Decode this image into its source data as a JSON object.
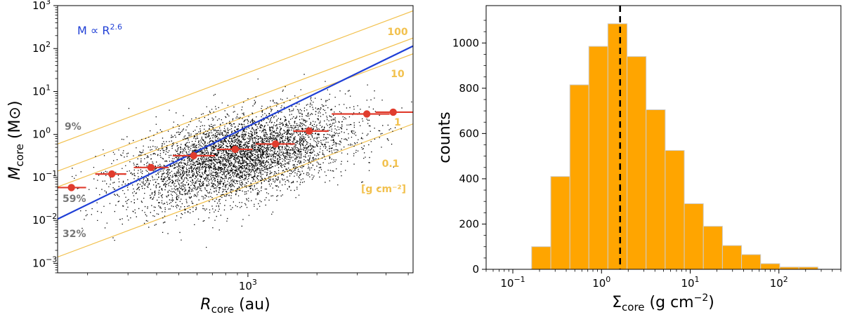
{
  "chart_data": [
    {
      "type": "scatter",
      "xscale": "log",
      "yscale": "log",
      "xlim": [
        148,
        5250
      ],
      "ylim": [
        0.0006,
        1000
      ],
      "xlabel": {
        "base": "R",
        "sub": "core",
        "rest": " (au)"
      },
      "ylabel": {
        "base": "M",
        "sub": "core",
        "rest": " (M⊙)"
      },
      "x_ticks": [
        {
          "value": 1000,
          "label": "10",
          "exp": "3"
        }
      ],
      "y_ticks": [
        {
          "value": 0.001,
          "label": "10",
          "exp": "−3"
        },
        {
          "value": 0.01,
          "label": "10",
          "exp": "−2"
        },
        {
          "value": 0.1,
          "label": "10",
          "exp": "−1"
        },
        {
          "value": 1,
          "label": "10",
          "exp": "0"
        },
        {
          "value": 10,
          "label": "10",
          "exp": "1"
        },
        {
          "value": 100,
          "label": "10",
          "exp": "2"
        },
        {
          "value": 1000,
          "label": "10",
          "exp": "3"
        }
      ],
      "scatter_cloud": {
        "count": 5000,
        "center_R_au": 900,
        "center_M_msun": 0.3,
        "color": "#000000"
      },
      "fit_line": {
        "label_base": "M ∝ R",
        "label_exp": "2.6",
        "slope": 2.6,
        "x0": 148,
        "y0": 0.0107,
        "color": "#1f3fd6"
      },
      "surface_density_lines": [
        {
          "label": "100",
          "value": 100,
          "y_at_left": 0.6
        },
        {
          "label": "10",
          "value": 10,
          "y_at_left": 0.14
        },
        {
          "label": "1",
          "value": 1,
          "y_at_left": 0.06
        },
        {
          "label": "0.1",
          "value": 0.1,
          "y_at_left": 0.0014
        }
      ],
      "surface_density_color": "#f2c14e",
      "surface_density_unit": "[g cm⁻²]",
      "binned_medians": [
        {
          "x": 170,
          "y": 0.058,
          "xerr_lo": 148,
          "xerr_hi": 197
        },
        {
          "x": 255,
          "y": 0.12,
          "xerr_lo": 216,
          "xerr_hi": 295
        },
        {
          "x": 378,
          "y": 0.17,
          "xerr_lo": 318,
          "xerr_hi": 450
        },
        {
          "x": 580,
          "y": 0.32,
          "xerr_lo": 470,
          "xerr_hi": 720
        },
        {
          "x": 880,
          "y": 0.45,
          "xerr_lo": 730,
          "xerr_hi": 1050
        },
        {
          "x": 1320,
          "y": 0.6,
          "xerr_lo": 1080,
          "xerr_hi": 1600
        },
        {
          "x": 1850,
          "y": 1.2,
          "xerr_lo": 1580,
          "xerr_hi": 2250
        },
        {
          "x": 3300,
          "y": 3.0,
          "xerr_lo": 2320,
          "xerr_hi": 4150
        },
        {
          "x": 4300,
          "y": 3.3,
          "xerr_lo": 3600,
          "xerr_hi": 5250
        }
      ],
      "binned_color": "#e03c2d",
      "percent_annotations": [
        {
          "label": "9%",
          "y": 2.7
        },
        {
          "label": "59%",
          "y": 0.03
        },
        {
          "label": "32%",
          "y": 0.0075
        }
      ],
      "percent_color": "#777777"
    },
    {
      "type": "bar",
      "xscale": "log",
      "xlim": [
        0.05,
        500
      ],
      "ylim": [
        0,
        1100
      ],
      "xlabel": {
        "base": "Σ",
        "sub": "core",
        "rest": " (g cm",
        "exp": "−2",
        "end": ")"
      },
      "ylabel": "counts",
      "x_ticks": [
        {
          "value": 0.1,
          "label": "10",
          "exp": "−1"
        },
        {
          "value": 1,
          "label": "10",
          "exp": "0"
        },
        {
          "value": 10,
          "label": "10",
          "exp": "1"
        },
        {
          "value": 100,
          "label": "10",
          "exp": "2"
        }
      ],
      "y_ticks": [
        0,
        200,
        400,
        600,
        800,
        1000
      ],
      "bin_edges": [
        0.163,
        0.268,
        0.44,
        0.72,
        1.18,
        1.94,
        3.18,
        5.22,
        8.57,
        14.07,
        23.1,
        37.9,
        62.2,
        102.2,
        167.7,
        275.3
      ],
      "counts": [
        100,
        410,
        815,
        985,
        1085,
        940,
        705,
        525,
        290,
        190,
        105,
        65,
        25,
        10,
        10
      ],
      "bar_color": "#ffa500",
      "bar_edge_color": "#cccccc",
      "median_line": {
        "x": 1.62,
        "style": "dashed",
        "color": "#000000"
      }
    }
  ]
}
